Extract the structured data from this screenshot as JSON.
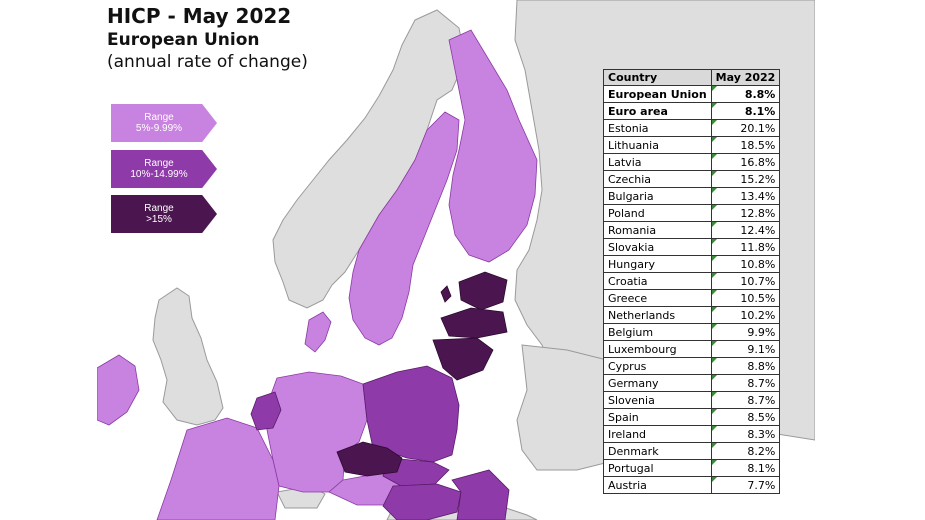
{
  "title": "HICP - May 2022",
  "subtitle": "European Union",
  "subsubtitle": "(annual rate of change)",
  "legend": [
    {
      "line1": "Range",
      "line2": "5%-9.99%",
      "color": "#c882e0"
    },
    {
      "line1": "Range",
      "line2": "10%-14.99%",
      "color": "#8e3aa8"
    },
    {
      "line1": "Range",
      "line2": ">15%",
      "color": "#4b1650"
    }
  ],
  "table": {
    "headers": [
      "Country",
      "May 2022"
    ],
    "rows": [
      {
        "country": "European Union",
        "value": "8.8%"
      },
      {
        "country": "Euro area",
        "value": "8.1%"
      },
      {
        "country": "Estonia",
        "value": "20.1%"
      },
      {
        "country": "Lithuania",
        "value": "18.5%"
      },
      {
        "country": "Latvia",
        "value": "16.8%"
      },
      {
        "country": "Czechia",
        "value": "15.2%"
      },
      {
        "country": "Bulgaria",
        "value": "13.4%"
      },
      {
        "country": "Poland",
        "value": "12.8%"
      },
      {
        "country": "Romania",
        "value": "12.4%"
      },
      {
        "country": "Slovakia",
        "value": "11.8%"
      },
      {
        "country": "Hungary",
        "value": "10.8%"
      },
      {
        "country": "Croatia",
        "value": "10.7%"
      },
      {
        "country": "Greece",
        "value": "10.5%"
      },
      {
        "country": "Netherlands",
        "value": "10.2%"
      },
      {
        "country": "Belgium",
        "value": "9.9%"
      },
      {
        "country": "Luxembourg",
        "value": "9.1%"
      },
      {
        "country": "Cyprus",
        "value": "8.8%"
      },
      {
        "country": "Germany",
        "value": "8.7%"
      },
      {
        "country": "Slovenia",
        "value": "8.7%"
      },
      {
        "country": "Spain",
        "value": "8.5%"
      },
      {
        "country": "Ireland",
        "value": "8.3%"
      },
      {
        "country": "Denmark",
        "value": "8.2%"
      },
      {
        "country": "Portugal",
        "value": "8.1%"
      },
      {
        "country": "Austria",
        "value": "7.7%"
      }
    ]
  },
  "colors": {
    "light": "#c882e0",
    "medium": "#8e3aa8",
    "dark": "#4b1650",
    "non_eu": "#dedede",
    "sea": "#ffffff"
  }
}
